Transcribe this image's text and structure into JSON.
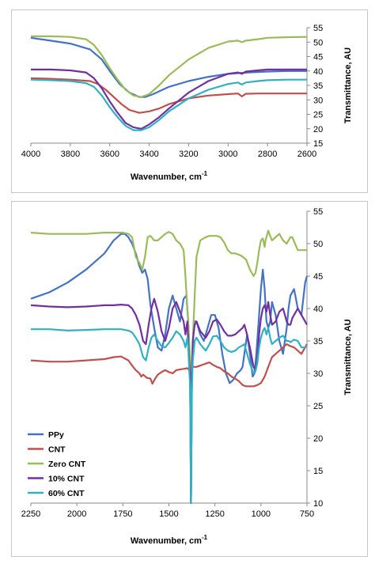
{
  "chart_data": [
    {
      "type": "line",
      "xlabel": "Wavenumber, cm",
      "xlabel_sup": "-1",
      "ylabel": "Transmittance, AU",
      "xlim": [
        4000,
        2600
      ],
      "ylim": [
        15,
        55
      ],
      "x_ticks": [
        "4000",
        "3800",
        "3600",
        "3400",
        "3200",
        "3000",
        "2800",
        "2600"
      ],
      "y_ticks": [
        "15",
        "20",
        "25",
        "30",
        "35",
        "40",
        "45",
        "50",
        "55"
      ],
      "series": [
        {
          "color": "#4472C4",
          "x": [
            4000,
            3900,
            3800,
            3700,
            3640,
            3600,
            3550,
            3500,
            3450,
            3420,
            3380,
            3300,
            3200,
            3100,
            3000,
            2900,
            2800,
            2700,
            2600
          ],
          "y": [
            51.5,
            50.5,
            49.5,
            47.5,
            44,
            40,
            35.5,
            32.5,
            31,
            31,
            32,
            34.5,
            36.5,
            38,
            39,
            39.5,
            39.8,
            40,
            40
          ]
        },
        {
          "color": "#C0504D",
          "x": [
            4000,
            3900,
            3800,
            3700,
            3660,
            3620,
            3580,
            3540,
            3500,
            3450,
            3400,
            3350,
            3300,
            3200,
            3100,
            3000,
            2950,
            2930,
            2910,
            2850,
            2800,
            2700,
            2600
          ],
          "y": [
            37.5,
            37.3,
            37,
            36.5,
            35.5,
            33.5,
            31,
            28.5,
            26.5,
            25.5,
            26,
            27,
            28.5,
            30.5,
            31.5,
            32,
            32.2,
            31.2,
            32.1,
            32.2,
            32.2,
            32.2,
            32.2
          ]
        },
        {
          "color": "#9BBB59",
          "x": [
            4000,
            3900,
            3800,
            3720,
            3680,
            3640,
            3600,
            3560,
            3520,
            3480,
            3440,
            3400,
            3350,
            3300,
            3200,
            3100,
            3000,
            2950,
            2930,
            2910,
            2850,
            2800,
            2700,
            2600
          ],
          "y": [
            52,
            52,
            51.8,
            51,
            49,
            45.5,
            41,
            37,
            33.5,
            31.5,
            31,
            32,
            35,
            38.5,
            44,
            48,
            50.2,
            50.5,
            50,
            50.5,
            51,
            51.5,
            51.7,
            51.8
          ]
        },
        {
          "color": "#7030A0",
          "x": [
            4000,
            3900,
            3800,
            3720,
            3680,
            3640,
            3600,
            3560,
            3520,
            3480,
            3440,
            3400,
            3350,
            3300,
            3200,
            3100,
            3000,
            2950,
            2930,
            2910,
            2850,
            2800,
            2700,
            2600
          ],
          "y": [
            40.5,
            40.5,
            40.2,
            39.5,
            37.5,
            34,
            29.5,
            25.5,
            22,
            20.5,
            20,
            21.5,
            24,
            27,
            32.5,
            36.5,
            39,
            39.5,
            39,
            39.8,
            40.2,
            40.5,
            40.5,
            40.5
          ]
        },
        {
          "color": "#31B0C4",
          "x": [
            4000,
            3900,
            3800,
            3720,
            3680,
            3640,
            3600,
            3560,
            3520,
            3480,
            3440,
            3400,
            3350,
            3300,
            3200,
            3100,
            3000,
            2950,
            2930,
            2910,
            2850,
            2800,
            2700,
            2600
          ],
          "y": [
            37,
            36.8,
            36.5,
            35.8,
            34.5,
            31.5,
            27.5,
            24,
            21,
            19.5,
            19.5,
            20.5,
            23,
            26,
            30.5,
            33.5,
            35.5,
            36,
            35.3,
            36,
            36.5,
            36.8,
            37,
            37
          ]
        }
      ]
    },
    {
      "type": "line",
      "xlabel": "Wavenumber, cm",
      "xlabel_sup": "-1",
      "ylabel": "Transmittance, AU",
      "xlim": [
        2250,
        750
      ],
      "ylim": [
        10,
        55
      ],
      "x_ticks": [
        "2250",
        "2000",
        "1750",
        "1500",
        "1250",
        "1000",
        "750"
      ],
      "y_ticks": [
        "10",
        "15",
        "20",
        "25",
        "30",
        "35",
        "40",
        "45",
        "50",
        "55"
      ],
      "legend_position": "bottom-left",
      "series": [
        {
          "name": "PPy",
          "color": "#4472C4",
          "x": [
            2250,
            2150,
            2050,
            1950,
            1850,
            1800,
            1760,
            1740,
            1720,
            1700,
            1680,
            1660,
            1645,
            1630,
            1615,
            1600,
            1580,
            1560,
            1540,
            1520,
            1500,
            1480,
            1460,
            1440,
            1420,
            1405,
            1395,
            1385,
            1380,
            1375,
            1365,
            1350,
            1330,
            1310,
            1290,
            1270,
            1250,
            1230,
            1210,
            1190,
            1170,
            1150,
            1130,
            1110,
            1100,
            1090,
            1075,
            1060,
            1045,
            1035,
            1025,
            1010,
            1000,
            990,
            980,
            970,
            960,
            950,
            940,
            920,
            900,
            880,
            860,
            850,
            840,
            820,
            800,
            780,
            760,
            750
          ],
          "y": [
            41.5,
            42.5,
            44,
            46,
            48.5,
            50.5,
            51.5,
            51.5,
            51,
            50,
            48.5,
            46.5,
            45.5,
            46,
            44.5,
            40.5,
            37,
            34,
            33.5,
            36,
            40,
            42,
            40,
            38,
            41.5,
            42,
            38,
            30,
            10,
            30,
            38,
            38,
            36,
            35,
            37,
            39,
            39,
            37,
            33,
            30,
            28.5,
            29,
            30,
            30.5,
            31,
            33,
            36,
            33,
            29.5,
            30,
            33,
            39,
            43,
            46,
            43,
            38,
            37,
            38,
            41,
            39,
            35,
            33,
            37,
            40,
            42,
            43,
            40,
            39,
            44,
            45
          ]
        },
        {
          "color": "#C0504D",
          "name": "CNT",
          "x": [
            2250,
            2150,
            2050,
            1950,
            1850,
            1800,
            1760,
            1720,
            1700,
            1680,
            1660,
            1650,
            1640,
            1620,
            1600,
            1590,
            1575,
            1560,
            1540,
            1520,
            1500,
            1480,
            1460,
            1440,
            1420,
            1400,
            1390,
            1385,
            1380,
            1375,
            1370,
            1350,
            1330,
            1300,
            1280,
            1260,
            1240,
            1220,
            1200,
            1180,
            1160,
            1140,
            1120,
            1100,
            1080,
            1060,
            1040,
            1020,
            1000,
            980,
            960,
            940,
            920,
            900,
            880,
            860,
            840,
            820,
            800,
            780,
            760,
            750
          ],
          "y": [
            32,
            31.8,
            31.8,
            32,
            32.2,
            32.5,
            32.6,
            32,
            31.2,
            30.5,
            30,
            29.5,
            29.8,
            29.3,
            29.2,
            28.4,
            29.2,
            29.8,
            30.2,
            30.5,
            30.2,
            30,
            30.5,
            30.6,
            30.7,
            30.8,
            30.5,
            30.8,
            31,
            30.8,
            31,
            31,
            31.2,
            31.5,
            31.7,
            31.3,
            31,
            30.8,
            30.3,
            30,
            29.5,
            29.2,
            28.8,
            28.2,
            28,
            28,
            28,
            28.2,
            28.5,
            29.5,
            31,
            32.5,
            33,
            33.5,
            34,
            34.5,
            34.2,
            34,
            33.5,
            33,
            34,
            34.5
          ]
        },
        {
          "color": "#9BBB59",
          "name": "Zero CNT",
          "x": [
            2250,
            2150,
            2050,
            1950,
            1850,
            1780,
            1750,
            1720,
            1700,
            1680,
            1660,
            1645,
            1630,
            1615,
            1600,
            1580,
            1560,
            1540,
            1520,
            1500,
            1480,
            1460,
            1440,
            1420,
            1410,
            1400,
            1395,
            1390,
            1385,
            1380,
            1375,
            1370,
            1360,
            1350,
            1330,
            1300,
            1280,
            1260,
            1240,
            1220,
            1200,
            1180,
            1160,
            1140,
            1120,
            1100,
            1080,
            1060,
            1040,
            1030,
            1020,
            1010,
            1000,
            990,
            980,
            975,
            970,
            960,
            950,
            940,
            920,
            900,
            880,
            860,
            850,
            840,
            830,
            800,
            780,
            760,
            750
          ],
          "y": [
            51.7,
            51.5,
            51.5,
            51.5,
            51.7,
            51.7,
            51.7,
            51.5,
            51,
            48,
            47,
            46,
            48,
            51,
            51.2,
            50.5,
            50.5,
            51,
            51.5,
            51.8,
            51.5,
            50.5,
            50,
            49,
            45,
            40,
            38,
            35,
            32,
            10,
            32,
            35,
            42,
            48,
            50.5,
            51,
            51.2,
            51.2,
            51.2,
            51,
            50.2,
            49,
            48.5,
            48.5,
            48.3,
            48,
            47.5,
            46,
            45,
            45.5,
            47,
            49,
            50.5,
            50.8,
            49.5,
            50.5,
            51,
            52,
            51.2,
            50.5,
            51,
            51.5,
            50.5,
            50,
            50.5,
            51,
            51,
            49,
            49,
            49,
            49
          ]
        },
        {
          "color": "#7030A0",
          "name": "10% CNT",
          "x": [
            2250,
            2150,
            2050,
            1950,
            1850,
            1800,
            1760,
            1720,
            1700,
            1680,
            1660,
            1640,
            1625,
            1610,
            1595,
            1580,
            1560,
            1540,
            1520,
            1500,
            1480,
            1460,
            1440,
            1420,
            1410,
            1400,
            1395,
            1390,
            1385,
            1380,
            1375,
            1370,
            1360,
            1350,
            1330,
            1300,
            1280,
            1260,
            1240,
            1220,
            1200,
            1180,
            1160,
            1140,
            1120,
            1100,
            1090,
            1080,
            1060,
            1040,
            1030,
            1020,
            1010,
            1000,
            990,
            980,
            970,
            960,
            950,
            940,
            920,
            900,
            880,
            860,
            850,
            840,
            830,
            820,
            800,
            780,
            760,
            750
          ],
          "y": [
            40.5,
            40.3,
            40.2,
            40.3,
            40.5,
            40.5,
            40.6,
            40.5,
            40,
            39,
            37.5,
            35,
            34.5,
            37.5,
            40,
            41.5,
            39.5,
            36.5,
            35,
            37,
            40,
            41,
            39.5,
            38,
            36,
            38,
            35,
            32,
            30,
            10,
            30,
            35,
            37.5,
            38,
            36.5,
            35.5,
            36.5,
            38,
            38.3,
            37.5,
            36.5,
            35.8,
            35.8,
            36,
            36.5,
            37,
            37.5,
            36.5,
            34,
            31,
            30.5,
            32,
            36,
            38.5,
            40,
            40.5,
            39.5,
            41,
            39,
            37.5,
            38,
            39.5,
            40,
            38,
            37.5,
            37.5,
            38.5,
            39,
            40,
            39,
            38,
            37.5
          ]
        },
        {
          "color": "#31B0C4",
          "name": "60% CNT",
          "x": [
            2250,
            2150,
            2050,
            1950,
            1850,
            1800,
            1760,
            1720,
            1700,
            1680,
            1660,
            1640,
            1625,
            1610,
            1595,
            1580,
            1560,
            1540,
            1520,
            1500,
            1480,
            1460,
            1440,
            1420,
            1410,
            1400,
            1395,
            1390,
            1385,
            1380,
            1375,
            1370,
            1360,
            1350,
            1330,
            1300,
            1280,
            1260,
            1240,
            1220,
            1200,
            1180,
            1160,
            1140,
            1120,
            1100,
            1090,
            1080,
            1060,
            1040,
            1030,
            1020,
            1010,
            1000,
            990,
            980,
            970,
            960,
            950,
            940,
            920,
            900,
            880,
            860,
            850,
            840,
            830,
            820,
            800,
            780,
            760,
            750
          ],
          "y": [
            36.8,
            36.8,
            36.6,
            36.7,
            36.8,
            36.8,
            36.8,
            36.6,
            36.3,
            35.5,
            34.5,
            32.5,
            32,
            34,
            35.5,
            36,
            35,
            34.2,
            34,
            34.7,
            35.5,
            36.5,
            36,
            35,
            34,
            35.5,
            34,
            31,
            28,
            10,
            28,
            32,
            35,
            35.5,
            34.5,
            33.5,
            34.5,
            35.7,
            35.8,
            35,
            34,
            33.5,
            33.3,
            33.5,
            34,
            34.3,
            34.5,
            33.5,
            31.5,
            30,
            30.3,
            31.5,
            34,
            35.5,
            36.5,
            37,
            36,
            37,
            35.5,
            34.5,
            35,
            35.5,
            35.8,
            35,
            35,
            34.8,
            35,
            35.2,
            35,
            34,
            34,
            34.2
          ]
        }
      ]
    }
  ]
}
